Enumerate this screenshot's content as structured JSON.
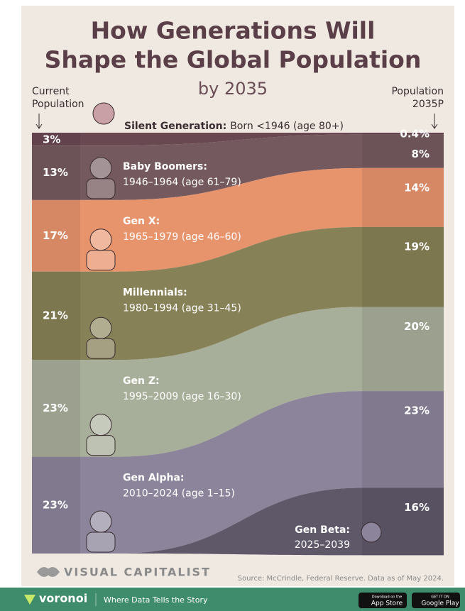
{
  "chart_data": {
    "type": "flow",
    "title": [
      "How Generations Will",
      "Shape the Global Population"
    ],
    "subtitle": "by 2035",
    "categories": [
      [
        "Current",
        "Population"
      ],
      [
        "Population",
        "2035P"
      ]
    ],
    "series": [
      {
        "name": "Silent Generation:",
        "years": "Born <1946 (age 80+)",
        "color": "#6a4852",
        "values": [
          3,
          0.4
        ],
        "value_labels": [
          "3%",
          "0.4%"
        ]
      },
      {
        "name": "Baby Boomers:",
        "years": "1946–1964 (age 61–79)",
        "color": "#745a5e",
        "values": [
          13,
          8
        ],
        "value_labels": [
          "13%",
          "8%"
        ]
      },
      {
        "name": "Gen X:",
        "years": "1965–1979 (age 46–60)",
        "color": "#e7936c",
        "values": [
          17,
          14
        ],
        "value_labels": [
          "17%",
          "14%"
        ]
      },
      {
        "name": "Millennials:",
        "years": "1980–1994 (age 31–45)",
        "color": "#878157",
        "values": [
          21,
          19
        ],
        "value_labels": [
          "21%",
          "19%"
        ]
      },
      {
        "name": "Gen Z:",
        "years": "1995–2009 (age 16–30)",
        "color": "#a7ae99",
        "values": [
          23,
          20
        ],
        "value_labels": [
          "23%",
          "20%"
        ]
      },
      {
        "name": "Gen Alpha:",
        "years": "2010–2024 (age 1–15)",
        "color": "#8b849a",
        "values": [
          23,
          23
        ],
        "value_labels": [
          "23%",
          "23%"
        ]
      },
      {
        "name": "Gen Beta:",
        "years": "2025–2039",
        "color": "#5e5869",
        "values": [
          null,
          16
        ],
        "value_labels": [
          null,
          "16%"
        ]
      }
    ]
  },
  "brand": "VISUAL CAPITALIST",
  "source": "Source: McCrindle, Federal Reserve. Data as of May 2024.",
  "footer": {
    "brand": "voronoi",
    "tagline": "Where Data Tells the Story",
    "app_store": [
      "Download on the",
      "App Store"
    ],
    "google_play": [
      "GET IT ON",
      "Google Play"
    ]
  }
}
